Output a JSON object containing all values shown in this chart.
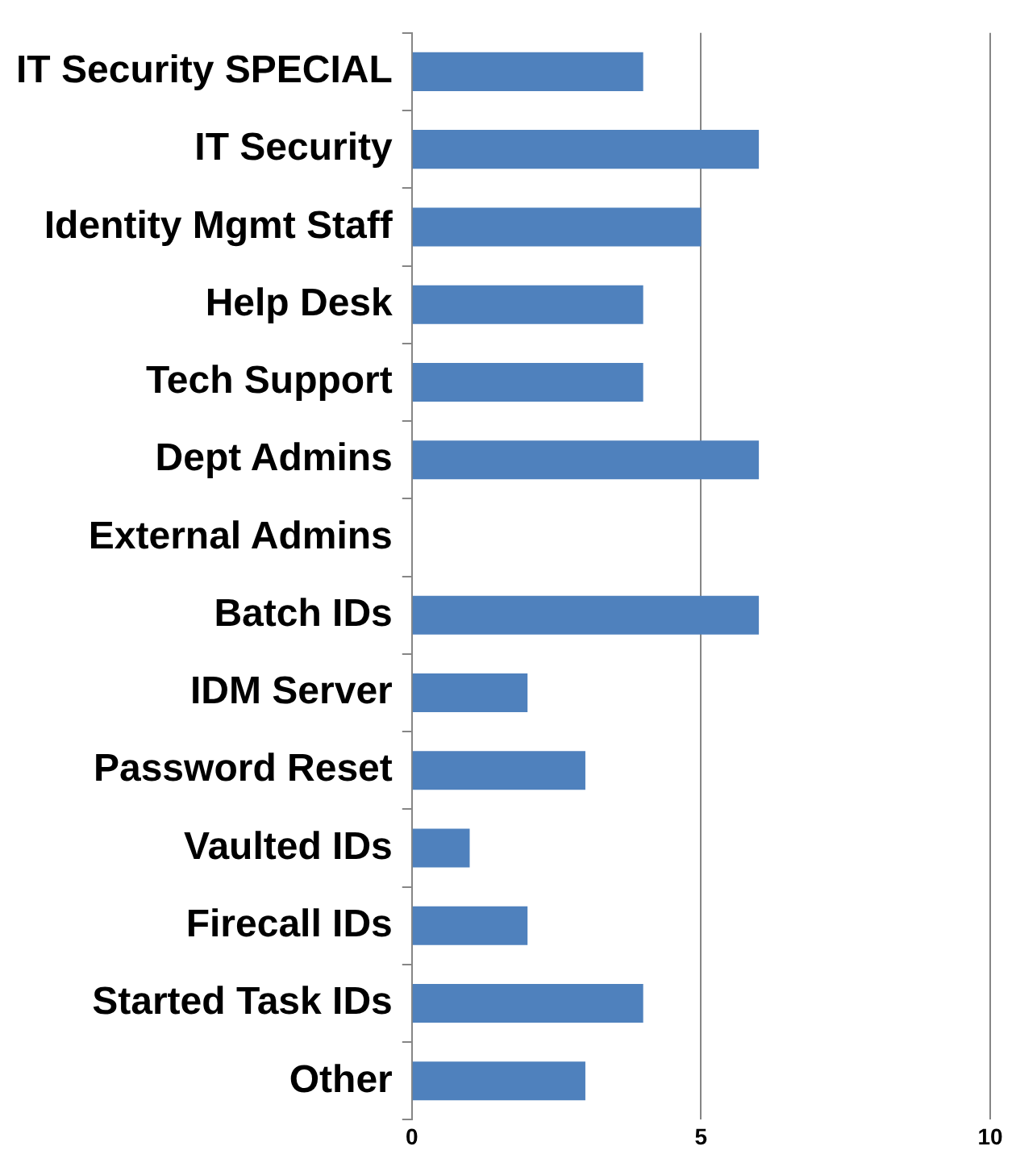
{
  "chart_data": {
    "type": "bar",
    "orientation": "horizontal",
    "categories": [
      "IT Security SPECIAL",
      "IT Security",
      "Identity Mgmt Staff",
      "Help Desk",
      "Tech Support",
      "Dept Admins",
      "External Admins",
      "Batch IDs",
      "IDM Server",
      "Password Reset",
      "Vaulted IDs",
      "Firecall IDs",
      "Started Task IDs",
      "Other"
    ],
    "series": [
      {
        "color": "#4f81bd",
        "values": [
          4,
          6,
          5,
          4,
          4,
          6,
          0,
          6,
          2,
          3,
          1,
          2,
          4,
          3
        ]
      }
    ],
    "xlim": [
      0,
      10
    ],
    "xticks": [
      0,
      5,
      10
    ],
    "grid": "x",
    "legend": false
  }
}
